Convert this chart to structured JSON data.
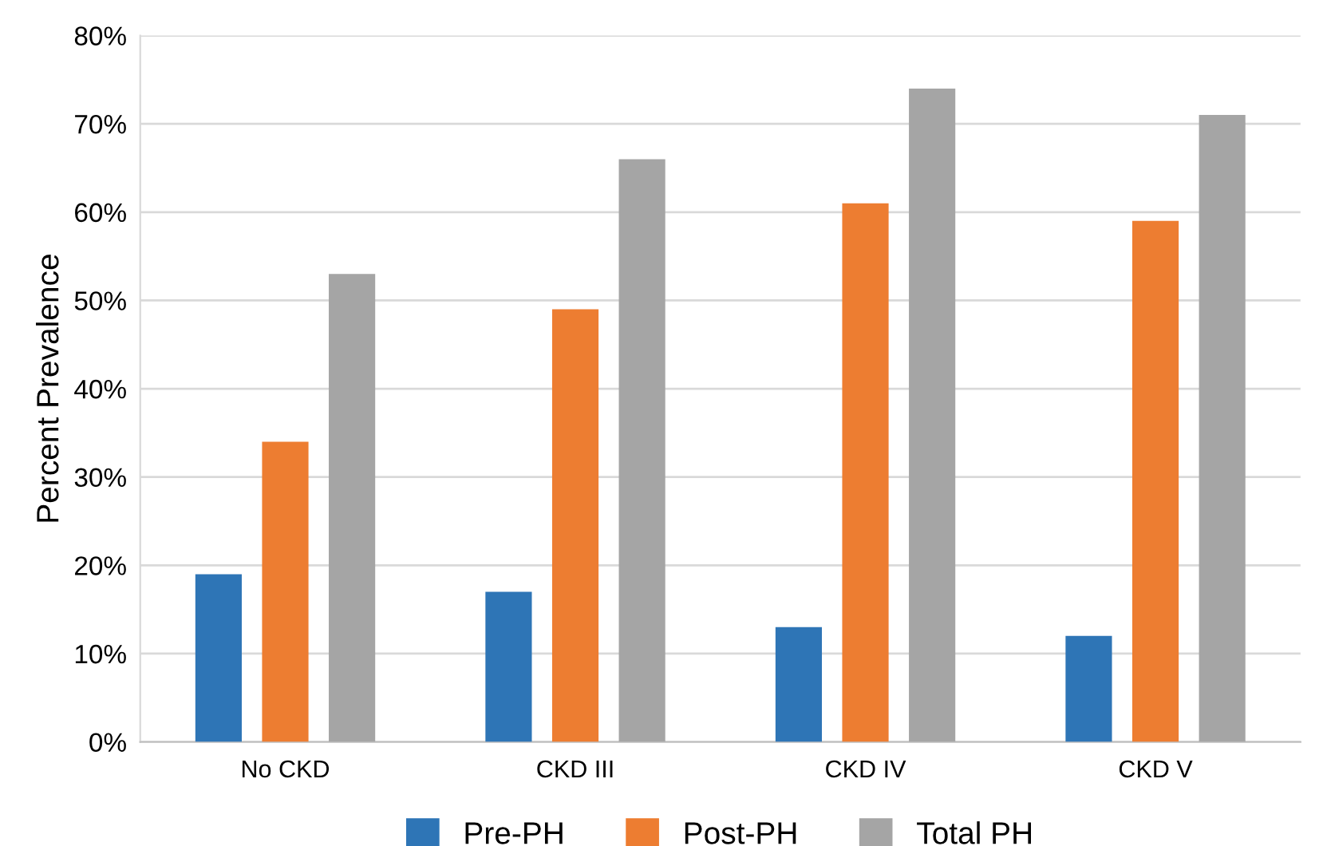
{
  "chart_data": {
    "type": "bar",
    "ylabel": "Percent Prevalence",
    "categories": [
      "No CKD",
      "CKD III",
      "CKD IV",
      "CKD V"
    ],
    "series": [
      {
        "name": "Pre-PH",
        "color": "#2e75b6",
        "values": [
          19,
          17,
          13,
          12
        ]
      },
      {
        "name": "Post-PH",
        "color": "#ed7d31",
        "values": [
          34,
          49,
          61,
          59
        ]
      },
      {
        "name": "Total PH",
        "color": "#a5a5a5",
        "values": [
          53,
          66,
          74,
          71
        ]
      }
    ],
    "ylim": [
      0,
      80
    ],
    "yticks": [
      {
        "value": 0,
        "label": "0%"
      },
      {
        "value": 10,
        "label": "10%"
      },
      {
        "value": 20,
        "label": "20%"
      },
      {
        "value": 30,
        "label": "30%"
      },
      {
        "value": 40,
        "label": "40%"
      },
      {
        "value": 50,
        "label": "50%"
      },
      {
        "value": 60,
        "label": "60%"
      },
      {
        "value": 70,
        "label": "70%"
      },
      {
        "value": 80,
        "label": "80%"
      }
    ],
    "grid": "y",
    "legend": "bottom"
  }
}
